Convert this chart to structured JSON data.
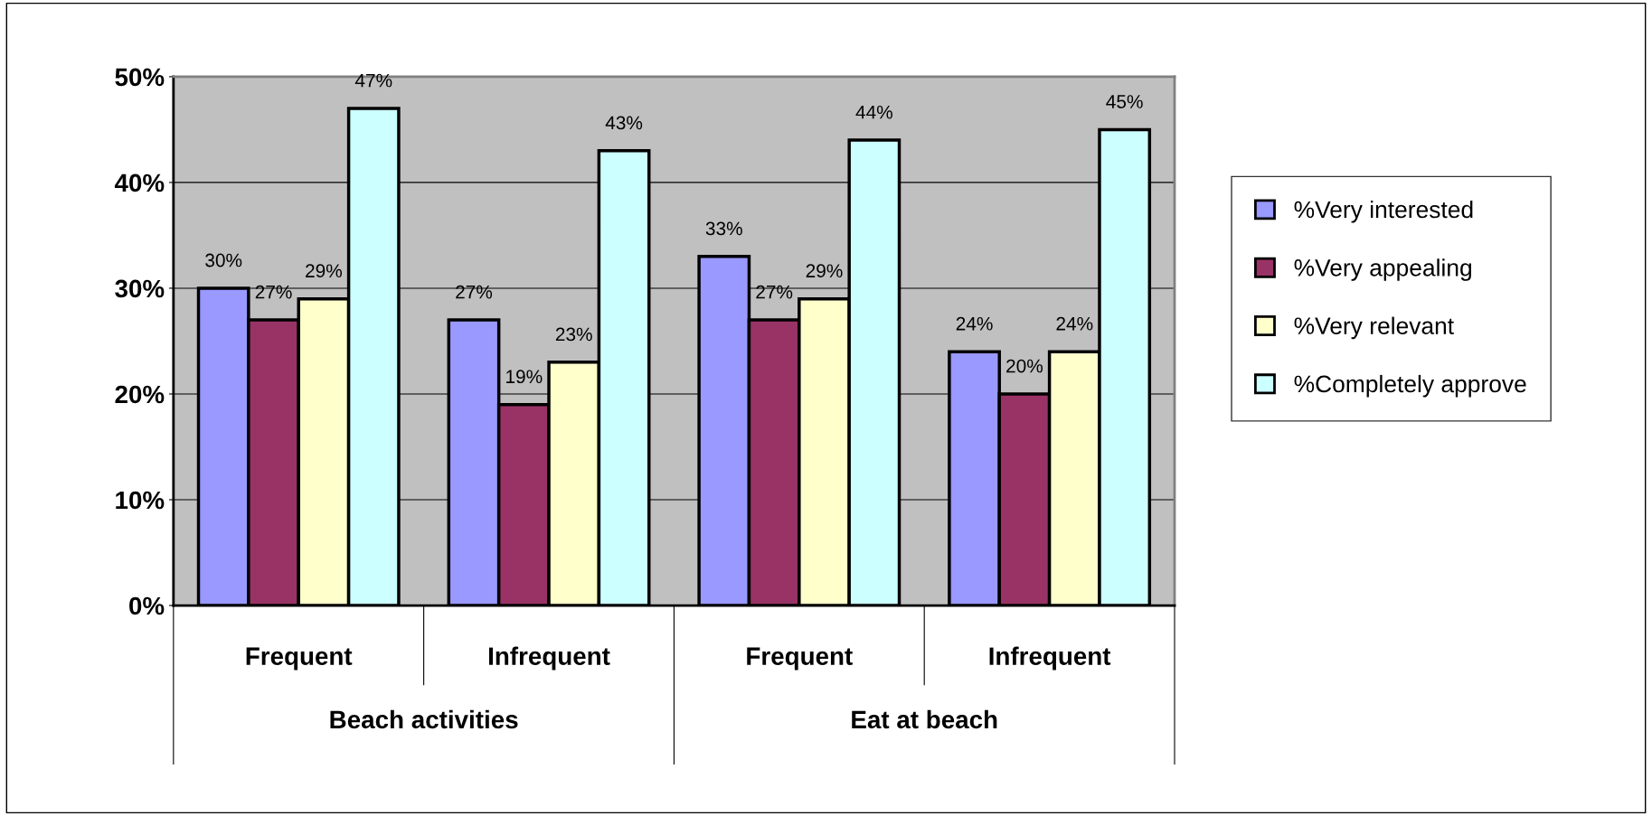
{
  "chart_data": {
    "type": "bar",
    "categories": [
      "Frequent",
      "Infrequent",
      "Frequent",
      "Infrequent"
    ],
    "annotations": [
      "Beach activities",
      "Eat at beach"
    ],
    "series": [
      {
        "name": "%Very interested",
        "color": "#9999ff",
        "values": [
          30,
          27,
          33,
          24
        ],
        "value_labels": [
          "30%",
          "27%",
          "33%",
          "24%"
        ]
      },
      {
        "name": "%Very appealing",
        "color": "#993366",
        "values": [
          27,
          19,
          27,
          20
        ],
        "value_labels": [
          "27%",
          "19%",
          "27%",
          "20%"
        ]
      },
      {
        "name": "%Very relevant",
        "color": "#ffffcc",
        "values": [
          29,
          23,
          29,
          24
        ],
        "value_labels": [
          "29%",
          "23%",
          "29%",
          "24%"
        ]
      },
      {
        "name": "%Completely approve",
        "color": "#ccffff",
        "values": [
          47,
          43,
          44,
          45
        ],
        "value_labels": [
          "47%",
          "43%",
          "44%",
          "45%"
        ]
      }
    ],
    "ylim": [
      0,
      50
    ],
    "yticks": [
      {
        "value": 0,
        "label": "0%"
      },
      {
        "value": 10,
        "label": "10%"
      },
      {
        "value": 20,
        "label": "20%"
      },
      {
        "value": 30,
        "label": "30%"
      },
      {
        "value": 40,
        "label": "40%"
      },
      {
        "value": 50,
        "label": "50%"
      }
    ],
    "grid": "y",
    "legend": "right"
  }
}
